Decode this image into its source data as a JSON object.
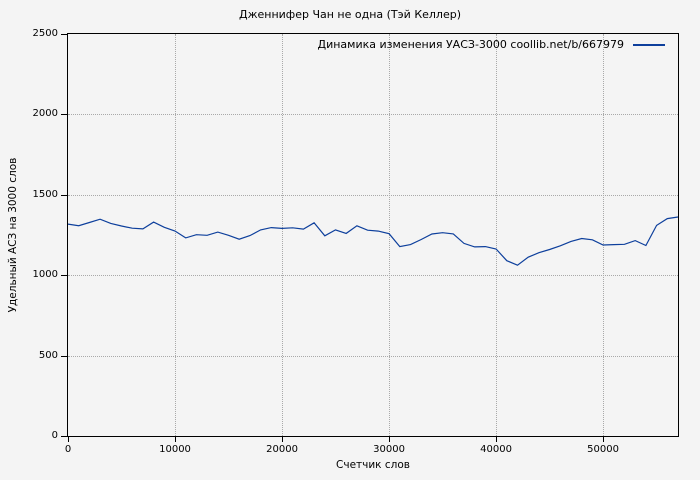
{
  "title": "Дженнифер Чан не одна (Тэй Келлер)",
  "legend": {
    "label": "Динамика изменения УАСЗ-3000 coollib.net/b/667979"
  },
  "colors": {
    "line": "#0d3f9c",
    "background": "#f4f4f4",
    "grid": "#a9a9a9",
    "axis": "#000000"
  },
  "chart_data": {
    "type": "line",
    "title": "Дженнифер Чан не одна (Тэй Келлер)",
    "xlabel": "Счетчик слов",
    "ylabel": "Удельный АСЗ на 3000 слов",
    "xlim": [
      0,
      57000
    ],
    "ylim": [
      0,
      2500
    ],
    "x_ticks": [
      0,
      10000,
      20000,
      30000,
      40000,
      50000
    ],
    "y_ticks": [
      0,
      500,
      1000,
      1500,
      2000,
      2500
    ],
    "grid": true,
    "legend_position": "top-right-inside",
    "series": [
      {
        "name": "Динамика изменения УАСЗ-3000 coollib.net/b/667979",
        "color": "#0d3f9c",
        "x": [
          0,
          1000,
          2000,
          3000,
          4000,
          5000,
          6000,
          7000,
          8000,
          9000,
          10000,
          11000,
          12000,
          13000,
          14000,
          15000,
          16000,
          17000,
          18000,
          19000,
          20000,
          21000,
          22000,
          23000,
          24000,
          25000,
          26000,
          27000,
          28000,
          29000,
          30000,
          31000,
          32000,
          33000,
          34000,
          35000,
          36000,
          37000,
          38000,
          39000,
          40000,
          41000,
          42000,
          43000,
          44000,
          45000,
          46000,
          47000,
          48000,
          49000,
          50000,
          51000,
          52000,
          53000,
          54000,
          55000,
          56000,
          57000
        ],
        "y": [
          1318,
          1308,
          1328,
          1348,
          1322,
          1306,
          1292,
          1288,
          1330,
          1298,
          1275,
          1232,
          1252,
          1248,
          1268,
          1248,
          1224,
          1246,
          1282,
          1296,
          1291,
          1295,
          1287,
          1326,
          1245,
          1282,
          1260,
          1307,
          1280,
          1274,
          1258,
          1178,
          1190,
          1222,
          1256,
          1264,
          1257,
          1198,
          1176,
          1178,
          1163,
          1090,
          1062,
          1112,
          1140,
          1160,
          1183,
          1210,
          1228,
          1220,
          1188,
          1190,
          1192,
          1215,
          1185,
          1310,
          1352,
          1362
        ]
      }
    ]
  }
}
